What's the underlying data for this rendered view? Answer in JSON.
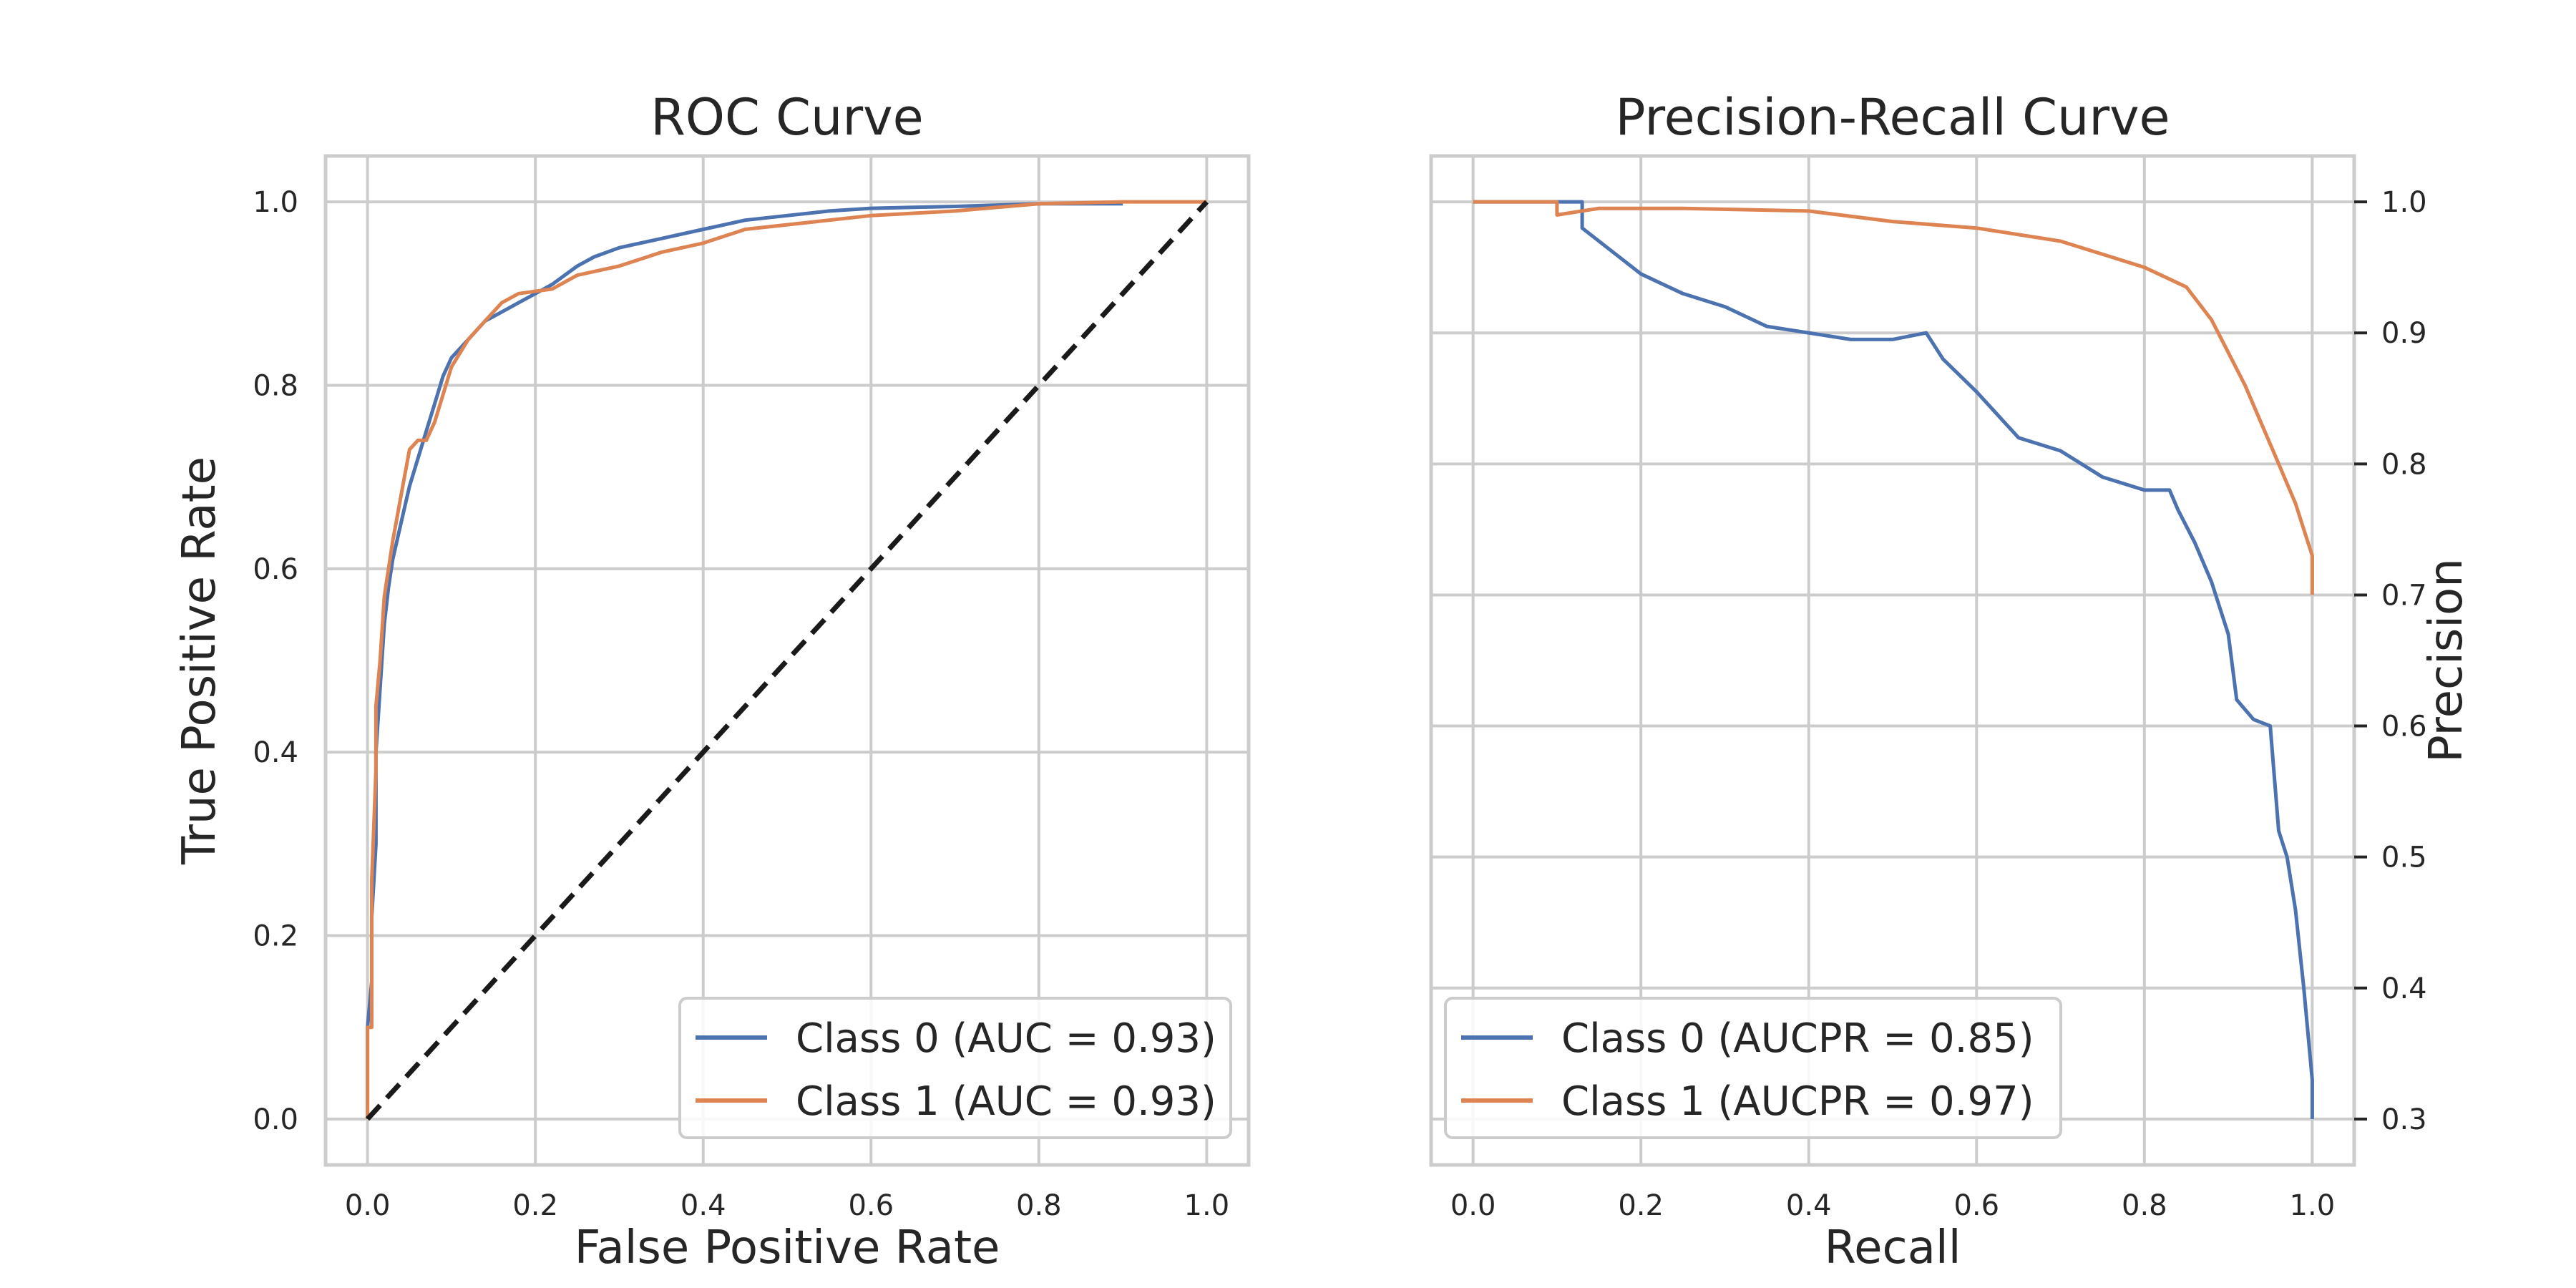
{
  "chart_data": [
    {
      "type": "line",
      "title": "ROC Curve",
      "xlabel": "False Positive Rate",
      "ylabel": "True Positive Rate",
      "xlim": [
        -0.05,
        1.05
      ],
      "ylim": [
        -0.05,
        1.05
      ],
      "xticks": [
        "0.0",
        "0.2",
        "0.4",
        "0.6",
        "0.8",
        "1.0"
      ],
      "yticks": [
        "0.0",
        "0.2",
        "0.4",
        "0.6",
        "0.8",
        "1.0"
      ],
      "grid": true,
      "legend_position": "lower right",
      "series": [
        {
          "name": "Class 0 (AUC = 0.93)",
          "color": "#4c72b0",
          "x": [
            0.0,
            0.0,
            0.005,
            0.005,
            0.01,
            0.01,
            0.015,
            0.02,
            0.025,
            0.03,
            0.04,
            0.05,
            0.06,
            0.07,
            0.08,
            0.09,
            0.1,
            0.12,
            0.14,
            0.16,
            0.18,
            0.2,
            0.22,
            0.25,
            0.27,
            0.3,
            0.35,
            0.4,
            0.45,
            0.5,
            0.55,
            0.6,
            0.7,
            0.8,
            0.9
          ],
          "y": [
            0.0,
            0.1,
            0.15,
            0.22,
            0.3,
            0.4,
            0.47,
            0.54,
            0.58,
            0.61,
            0.65,
            0.69,
            0.72,
            0.75,
            0.78,
            0.81,
            0.83,
            0.85,
            0.87,
            0.88,
            0.89,
            0.9,
            0.91,
            0.93,
            0.94,
            0.95,
            0.96,
            0.97,
            0.98,
            0.985,
            0.99,
            0.993,
            0.995,
            0.998,
            0.998
          ]
        },
        {
          "name": "Class 1 (AUC = 0.93)",
          "color": "#dd8452",
          "x": [
            0.0,
            0.0,
            0.005,
            0.005,
            0.01,
            0.01,
            0.015,
            0.02,
            0.025,
            0.03,
            0.04,
            0.05,
            0.06,
            0.07,
            0.08,
            0.09,
            0.1,
            0.12,
            0.14,
            0.16,
            0.18,
            0.22,
            0.25,
            0.3,
            0.35,
            0.4,
            0.45,
            0.5,
            0.6,
            0.7,
            0.8,
            0.9,
            1.0
          ],
          "y": [
            0.0,
            0.1,
            0.1,
            0.26,
            0.38,
            0.45,
            0.5,
            0.57,
            0.6,
            0.63,
            0.68,
            0.73,
            0.74,
            0.74,
            0.76,
            0.79,
            0.82,
            0.85,
            0.87,
            0.89,
            0.9,
            0.905,
            0.92,
            0.93,
            0.945,
            0.955,
            0.97,
            0.975,
            0.985,
            0.99,
            0.998,
            1.0,
            1.0
          ]
        },
        {
          "name": "",
          "color": "#1a1a1a",
          "dash": true,
          "x": [
            0.0,
            1.0
          ],
          "y": [
            0.0,
            1.0
          ]
        }
      ],
      "legend": [
        {
          "label": "Class 0 (AUC = 0.93)",
          "color": "#4c72b0"
        },
        {
          "label": "Class 1 (AUC = 0.93)",
          "color": "#dd8452"
        }
      ]
    },
    {
      "type": "line",
      "title": "Precision-Recall Curve",
      "xlabel": "Recall",
      "ylabel": "Precision",
      "xlim": [
        -0.05,
        1.05
      ],
      "ylim": [
        0.265,
        1.035
      ],
      "xticks": [
        "0.0",
        "0.2",
        "0.4",
        "0.6",
        "0.8",
        "1.0"
      ],
      "yticks": [
        "0.3",
        "0.4",
        "0.5",
        "0.6",
        "0.7",
        "0.8",
        "0.9",
        "1.0"
      ],
      "yaxis_side": "right",
      "grid": true,
      "legend_position": "lower left",
      "series": [
        {
          "name": "Class 0 (AUCPR = 0.85)",
          "color": "#4c72b0",
          "x": [
            0.0,
            0.13,
            0.13,
            0.16,
            0.2,
            0.25,
            0.3,
            0.35,
            0.4,
            0.45,
            0.5,
            0.54,
            0.56,
            0.6,
            0.65,
            0.7,
            0.75,
            0.8,
            0.83,
            0.84,
            0.86,
            0.88,
            0.9,
            0.91,
            0.93,
            0.95,
            0.96,
            0.97,
            0.98,
            0.99,
            1.0,
            1.0
          ],
          "y": [
            1.0,
            1.0,
            0.98,
            0.965,
            0.945,
            0.93,
            0.92,
            0.905,
            0.9,
            0.895,
            0.895,
            0.9,
            0.88,
            0.855,
            0.82,
            0.81,
            0.79,
            0.78,
            0.78,
            0.765,
            0.74,
            0.71,
            0.67,
            0.62,
            0.605,
            0.6,
            0.52,
            0.5,
            0.46,
            0.4,
            0.33,
            0.3
          ]
        },
        {
          "name": "Class 1 (AUCPR = 0.97)",
          "color": "#dd8452",
          "x": [
            0.0,
            0.1,
            0.1,
            0.15,
            0.25,
            0.4,
            0.5,
            0.6,
            0.7,
            0.75,
            0.8,
            0.85,
            0.88,
            0.9,
            0.92,
            0.94,
            0.96,
            0.98,
            0.99,
            1.0,
            1.0
          ],
          "y": [
            1.0,
            1.0,
            0.99,
            0.995,
            0.995,
            0.993,
            0.985,
            0.98,
            0.97,
            0.96,
            0.95,
            0.935,
            0.91,
            0.885,
            0.86,
            0.83,
            0.8,
            0.77,
            0.75,
            0.73,
            0.7
          ]
        }
      ],
      "legend": [
        {
          "label": "Class 0 (AUCPR = 0.85)",
          "color": "#4c72b0"
        },
        {
          "label": "Class 1 (AUCPR = 0.97)",
          "color": "#dd8452"
        }
      ]
    }
  ]
}
